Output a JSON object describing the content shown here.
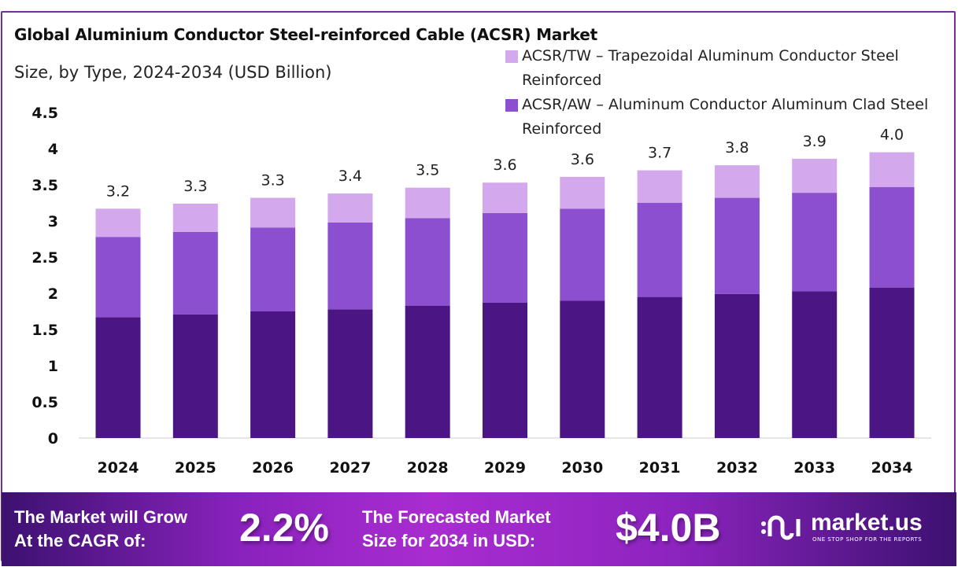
{
  "chart_data": {
    "type": "bar",
    "stacked": true,
    "title": "Global Aluminium Conductor Steel-reinforced Cable (ACSR) Market",
    "subtitle": "Size, by Type, 2024-2034 (USD Billion)",
    "categories": [
      "2024",
      "2025",
      "2026",
      "2027",
      "2028",
      "2029",
      "2030",
      "2031",
      "2032",
      "2033",
      "2034"
    ],
    "series": [
      {
        "color": "#4b1583",
        "values": [
          1.67,
          1.71,
          1.75,
          1.78,
          1.83,
          1.87,
          1.9,
          1.95,
          1.99,
          2.03,
          2.08
        ]
      },
      {
        "name": "ACSR/AW – Aluminum Conductor Aluminum Clad Steel Reinforced",
        "color": "#8b4fcf",
        "values": [
          1.11,
          1.14,
          1.16,
          1.2,
          1.21,
          1.24,
          1.27,
          1.3,
          1.33,
          1.36,
          1.39
        ]
      },
      {
        "name": "ACSR/TW – Trapezoidal Aluminum Conductor Steel Reinforced",
        "color": "#d3a8ec",
        "values": [
          0.39,
          0.39,
          0.41,
          0.4,
          0.42,
          0.42,
          0.44,
          0.45,
          0.45,
          0.47,
          0.48
        ]
      }
    ],
    "total_labels": [
      "3.2",
      "3.3",
      "3.3",
      "3.4",
      "3.5",
      "3.6",
      "3.6",
      "3.7",
      "3.8",
      "3.9",
      "4.0"
    ],
    "yticks": [
      "0",
      "0.5",
      "1",
      "1.5",
      "2",
      "2.5",
      "3",
      "3.5",
      "4",
      "4.5"
    ],
    "ylim": [
      0,
      4.5
    ],
    "grid": false,
    "legend_placement": "top-right"
  },
  "banner": {
    "cagr_text_1": "The Market will Grow",
    "cagr_text_2": "At the CAGR of:",
    "cagr_value": "2.2%",
    "forecast_text_1": "The Forecasted Market",
    "forecast_text_2": "Size for 2034 in USD:",
    "forecast_value": "$4.0B",
    "logo_name": "market.us",
    "logo_tagline": "ONE STOP SHOP FOR THE REPORTS"
  }
}
